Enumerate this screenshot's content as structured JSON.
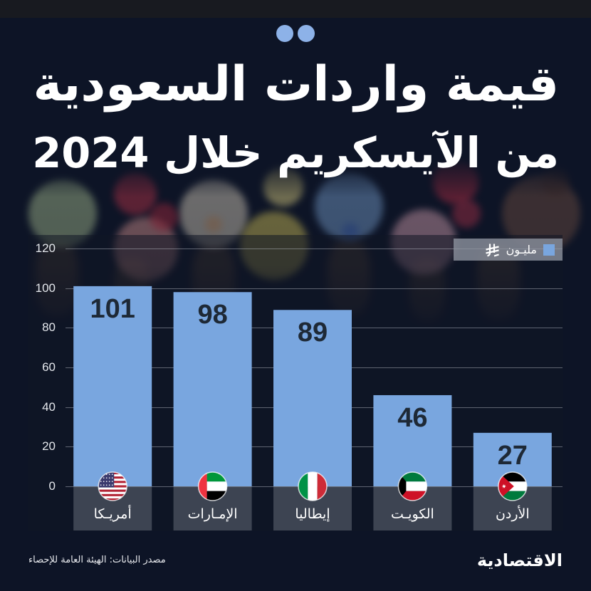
{
  "chart_data": {
    "type": "bar",
    "title_lines": [
      "قيمة واردات السعودية",
      "من الآيسكريم خلال 2024"
    ],
    "categories": [
      "أمريـكا",
      "الإمـارات",
      "إيطاليا",
      "الكويـت",
      "الأردن"
    ],
    "category_icons": [
      "usa-flag-icon",
      "uae-flag-icon",
      "italy-flag-icon",
      "kuwait-flag-icon",
      "jordan-flag-icon"
    ],
    "series": [
      {
        "name": "مليـون",
        "unit_icon": "saudi-riyal-symbol-icon",
        "color": "#79a6df",
        "values": [
          101,
          98,
          89,
          46,
          27
        ]
      }
    ],
    "y_axis": {
      "min": 0,
      "max": 120,
      "ticks": [
        0,
        20,
        40,
        60,
        80,
        100,
        120
      ]
    },
    "grid": true,
    "legend": {
      "placement": "top-right"
    }
  },
  "footer": {
    "source": "مصدر البيانات: الهيئة العامة للإحصاء",
    "logo_text": "الاقتصادية"
  },
  "colors": {
    "background": "#0d1426",
    "bar": "#79a6df",
    "dots": "#8db2e8",
    "value_text": "#1e2936",
    "text": "#ffffff"
  }
}
